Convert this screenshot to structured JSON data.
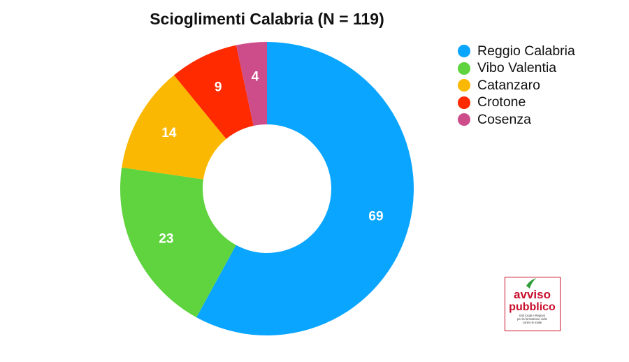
{
  "chart_data": {
    "type": "pie",
    "title": "Scioglimenti Calabria (N = 119)",
    "categories": [
      "Reggio Calabria",
      "Vibo Valentia",
      "Catanzaro",
      "Crotone",
      "Cosenza"
    ],
    "values": [
      69,
      23,
      14,
      9,
      4
    ],
    "colors": [
      "#0aa5ff",
      "#5fd43e",
      "#fbb802",
      "#ff2a00",
      "#cc4d8a"
    ],
    "data_labels": [
      "69",
      "23",
      "14",
      "9",
      "4"
    ],
    "donut": true,
    "legend_position": "top-right"
  },
  "logo": {
    "text_line1": "avviso",
    "text_line2": "pubblico",
    "tagline": "Enti locali e Regioni per la formazione civile contro le mafie",
    "color": "#c8102e"
  }
}
